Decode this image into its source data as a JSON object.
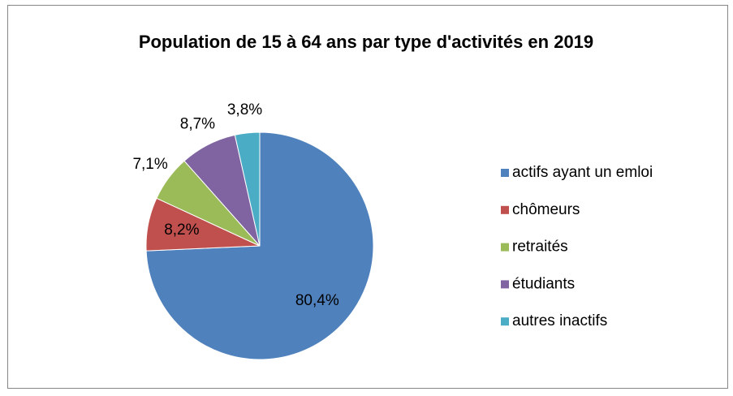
{
  "chart_data": {
    "type": "pie",
    "title": "Population de 15 à 64 ans par type d'activités en 2019",
    "categories": [
      "actifs ayant un emloi",
      "chômeurs",
      "retraités",
      "étudiants",
      "autres inactifs"
    ],
    "values": [
      80.4,
      8.2,
      7.1,
      8.7,
      3.8
    ],
    "value_labels": [
      "80,4%",
      "8,2%",
      "7,1%",
      "8,7%",
      "3,8%"
    ],
    "colors": [
      "#4f81bd",
      "#c0504d",
      "#9bbb59",
      "#8064a2",
      "#4bacc6"
    ],
    "legend": "right"
  }
}
